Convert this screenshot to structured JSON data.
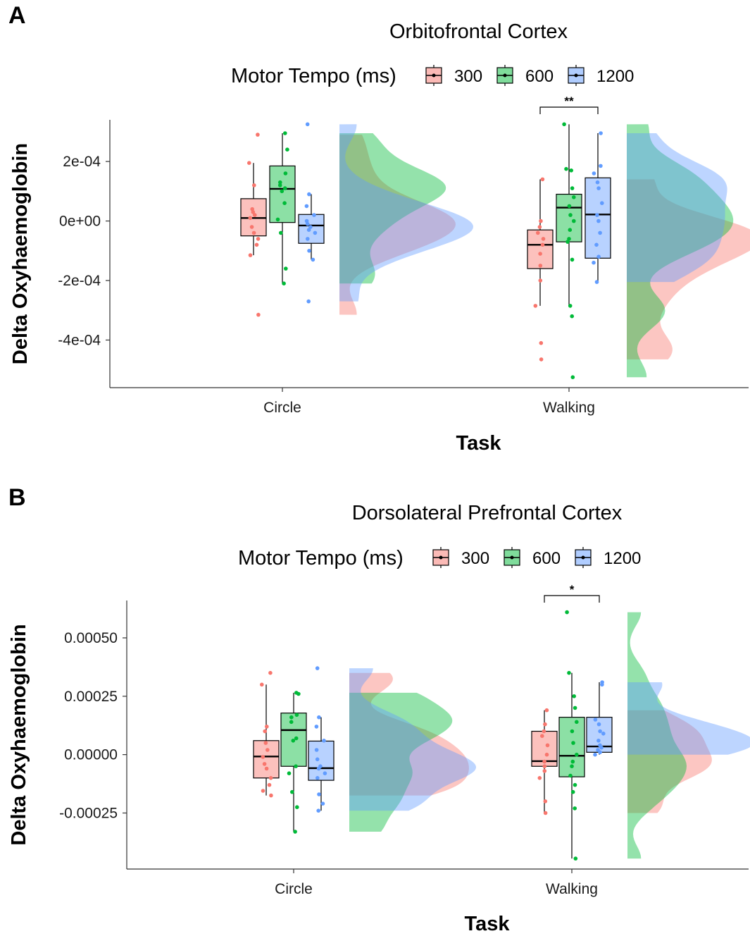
{
  "colors": {
    "300": "#F8766D",
    "600": "#00BA38",
    "1200": "#619CFF"
  },
  "legend": {
    "title": "Motor Tempo (ms)",
    "entries": [
      "300",
      "600",
      "1200"
    ]
  },
  "chart_data": [
    {
      "panel": "A",
      "type": "raincloud",
      "title": "Orbitofrontal Cortex",
      "xlabel": "Task",
      "ylabel": "Delta Oxyhaemoglobin",
      "categories": [
        "Circle",
        "Walking"
      ],
      "ylim": [
        -0.00056,
        0.00034
      ],
      "yticks": [
        0.0002,
        0.0,
        -0.0002,
        -0.0004
      ],
      "ytick_labels": [
        "2e-04",
        "0e+00",
        "-2e-04",
        "-4e-04"
      ],
      "grid": false,
      "legend_position": "top",
      "significance": [
        {
          "category": "Walking",
          "from": "300",
          "to": "1200",
          "label": "**"
        }
      ],
      "series": [
        {
          "name": "300",
          "boxes": [
            {
              "category": "Circle",
              "min": -0.000115,
              "q1": -5e-05,
              "median": 1e-05,
              "q3": 7.5e-05,
              "max": 0.000195,
              "outliers": [
                0.00029,
                -0.000315
              ]
            },
            {
              "category": "Walking",
              "min": -0.000285,
              "q1": -0.00016,
              "median": -8e-05,
              "q3": -3e-05,
              "max": 0.00014,
              "outliers": [
                -0.00041,
                -0.000465
              ]
            }
          ],
          "points": [
            {
              "category": "Circle",
              "values": [
                0.00029,
                0.000195,
                0.00012,
                4e-05,
                3e-05,
                2e-05,
                1e-05,
                -2e-05,
                -4e-05,
                -6e-05,
                -8e-05,
                -0.000115,
                -0.000315
              ]
            },
            {
              "category": "Walking",
              "values": [
                0.00014,
                0.0,
                -2e-05,
                -4e-05,
                -6e-05,
                -8e-05,
                -0.00011,
                -0.00015,
                -0.0002,
                -0.000285,
                -0.00041,
                -0.000465
              ]
            }
          ]
        },
        {
          "name": "600",
          "boxes": [
            {
              "category": "Circle",
              "min": -0.00021,
              "q1": -5e-06,
              "median": 0.000108,
              "q3": 0.000185,
              "max": 0.000295,
              "outliers": []
            },
            {
              "category": "Walking",
              "min": -0.000285,
              "q1": -7e-05,
              "median": 4.5e-05,
              "q3": 9e-05,
              "max": 0.000325,
              "outliers": [
                -0.000525
              ]
            }
          ],
          "points": [
            {
              "category": "Circle",
              "values": [
                0.000295,
                0.00024,
                0.00016,
                0.00013,
                0.00012,
                0.00011,
                0.0001,
                6e-05,
                5e-06,
                -4e-05,
                -0.00016,
                -0.00021
              ]
            },
            {
              "category": "Walking",
              "values": [
                0.000325,
                0.000175,
                0.00017,
                0.00011,
                8e-05,
                5e-05,
                2e-05,
                0.0,
                -3e-05,
                -6e-05,
                -7e-05,
                -0.00013,
                -0.000285,
                -0.00032,
                -0.000525
              ]
            }
          ]
        },
        {
          "name": "1200",
          "boxes": [
            {
              "category": "Circle",
              "min": -0.00013,
              "q1": -7.5e-05,
              "median": -1.5e-05,
              "q3": 2.2e-05,
              "max": 9e-05,
              "outliers": [
                0.000325,
                -0.00027
              ]
            },
            {
              "category": "Walking",
              "min": -0.000205,
              "q1": -0.000125,
              "median": 2.2e-05,
              "q3": 0.000145,
              "max": 0.000295,
              "outliers": []
            }
          ],
          "points": [
            {
              "category": "Circle",
              "values": [
                0.000325,
                9e-05,
                5e-05,
                2e-05,
                0.0,
                -1e-05,
                -2e-05,
                -3e-05,
                -4e-05,
                -6e-05,
                -0.0001,
                -0.00013,
                -0.00027
              ]
            },
            {
              "category": "Walking",
              "values": [
                0.000295,
                0.000185,
                0.00016,
                0.00013,
                0.00011,
                6e-05,
                2e-05,
                0.0,
                -4e-05,
                -8e-05,
                -0.00012,
                -0.00014,
                -0.000205
              ]
            }
          ]
        }
      ]
    },
    {
      "panel": "B",
      "type": "raincloud",
      "title": "Dorsolateral Prefrontal Cortex",
      "xlabel": "Task",
      "ylabel": "Delta Oxyhaemoglobin",
      "categories": [
        "Circle",
        "Walking"
      ],
      "ylim": [
        -0.00049,
        0.00066
      ],
      "yticks": [
        0.0005,
        0.00025,
        0.0,
        -0.00025
      ],
      "ytick_labels": [
        "0.00050",
        "0.00025",
        "0.00000",
        "-0.00025"
      ],
      "grid": false,
      "legend_position": "top",
      "significance": [
        {
          "category": "Walking",
          "from": "300",
          "to": "1200",
          "label": "*"
        }
      ],
      "series": [
        {
          "name": "300",
          "boxes": [
            {
              "category": "Circle",
              "min": -0.000175,
              "q1": -0.0001,
              "median": -8e-06,
              "q3": 6e-05,
              "max": 0.0003,
              "outliers": [
                0.00035
              ]
            },
            {
              "category": "Walking",
              "min": -0.00025,
              "q1": -5e-05,
              "median": -2.8e-05,
              "q3": 0.0001,
              "max": 0.00019,
              "outliers": []
            }
          ],
          "points": [
            {
              "category": "Circle",
              "values": [
                0.00035,
                0.0003,
                0.00012,
                0.0001,
                5e-05,
                2e-05,
                -1e-05,
                -4e-05,
                -6e-05,
                -0.0001,
                -0.00013,
                -0.000155,
                -0.000175
              ]
            },
            {
              "category": "Walking",
              "values": [
                0.00019,
                0.00013,
                0.0001,
                8e-05,
                4e-05,
                0.0,
                -3e-05,
                -5e-05,
                -7e-05,
                -0.0001,
                -0.0002,
                -0.00025
              ]
            }
          ]
        },
        {
          "name": "600",
          "boxes": [
            {
              "category": "Circle",
              "min": -0.00033,
              "q1": -5e-05,
              "median": 0.000105,
              "q3": 0.000178,
              "max": 0.000265,
              "outliers": []
            },
            {
              "category": "Walking",
              "min": -0.000445,
              "q1": -9.5e-05,
              "median": -5e-06,
              "q3": 0.00016,
              "max": 0.00035,
              "outliers": [
                0.00061
              ]
            }
          ],
          "points": [
            {
              "category": "Circle",
              "values": [
                0.000265,
                0.00026,
                0.00017,
                0.00016,
                0.00014,
                7e-05,
                6e-05,
                -5e-05,
                -8e-05,
                -0.00016,
                -0.000225,
                -0.00033
              ]
            },
            {
              "category": "Walking",
              "values": [
                0.00061,
                0.00035,
                0.00025,
                0.0002,
                0.00014,
                0.0001,
                5e-05,
                0.0,
                -3e-05,
                -5e-05,
                -9e-05,
                -0.00013,
                -0.00016,
                -0.00023,
                -0.000445
              ]
            }
          ]
        },
        {
          "name": "1200",
          "boxes": [
            {
              "category": "Circle",
              "min": -0.00024,
              "q1": -0.00011,
              "median": -5.8e-05,
              "q3": 5.8e-05,
              "max": 0.00016,
              "outliers": [
                0.00037
              ]
            },
            {
              "category": "Walking",
              "min": 0.0,
              "q1": 1e-05,
              "median": 3.5e-05,
              "q3": 0.00016,
              "max": 0.00031,
              "outliers": []
            }
          ],
          "points": [
            {
              "category": "Circle",
              "values": [
                0.00037,
                0.00016,
                0.00012,
                6e-05,
                2e-05,
                -2e-05,
                -5e-05,
                -6e-05,
                -8e-05,
                -0.0001,
                -0.00017,
                -0.00021,
                -0.00024
              ]
            },
            {
              "category": "Walking",
              "values": [
                0.00031,
                0.0003,
                0.00015,
                0.00013,
                0.0001,
                9e-05,
                6e-05,
                4e-05,
                3e-05,
                2e-05,
                1e-05,
                0.0
              ]
            }
          ]
        }
      ]
    }
  ]
}
